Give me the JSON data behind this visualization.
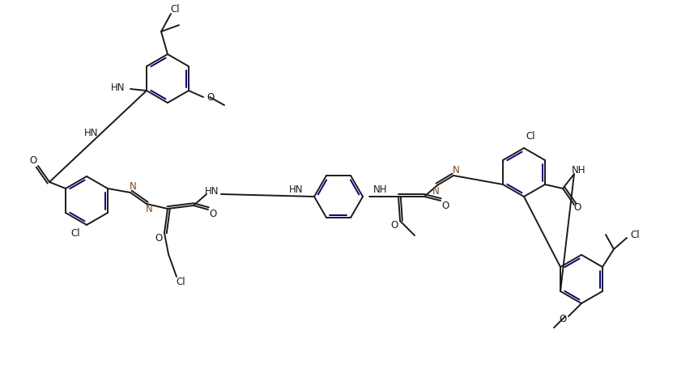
{
  "bg_color": "#ffffff",
  "lc": "#1a1a1a",
  "ac": "#00008B",
  "azc": "#8B4513",
  "lw": 1.4,
  "lw2": 1.4,
  "fs": 8.5,
  "figsize": [
    8.37,
    4.66
  ],
  "dpi": 100,
  "xlim": [
    0,
    837
  ],
  "ylim": [
    0,
    466
  ]
}
